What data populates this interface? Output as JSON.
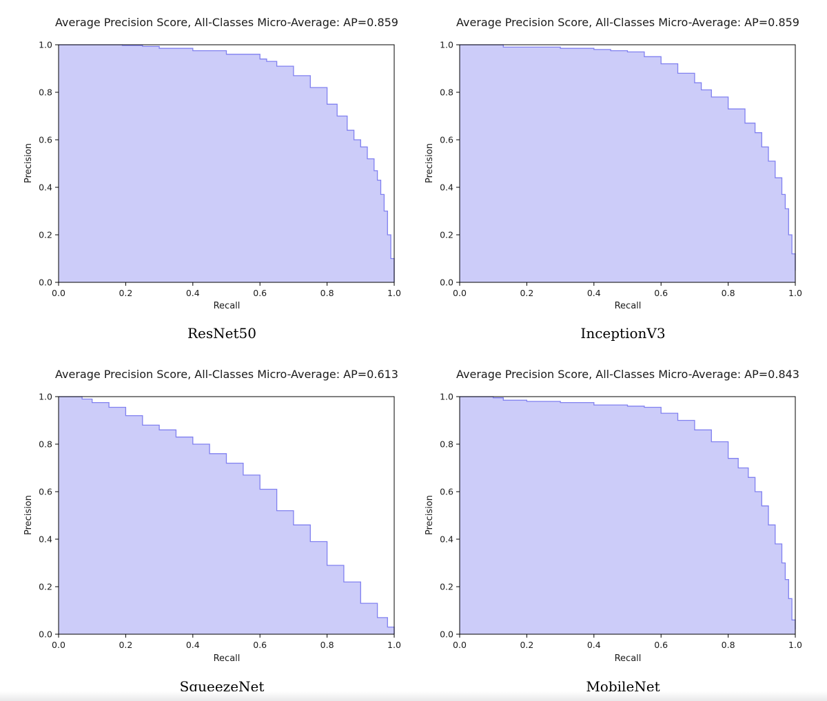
{
  "chart_data": [
    {
      "type": "area",
      "title": "Average Precision Score, All-Classes Micro-Average: AP=0.859",
      "caption": "ResNet50",
      "xlabel": "Recall",
      "ylabel": "Precision",
      "xlim": [
        0,
        1
      ],
      "ylim": [
        0,
        1
      ],
      "x_ticks": [
        "0.0",
        "0.2",
        "0.4",
        "0.6",
        "0.8",
        "1.0"
      ],
      "y_ticks": [
        "0.0",
        "0.2",
        "0.4",
        "0.6",
        "0.8",
        "1.0"
      ],
      "grid": false,
      "color": "#8080f0",
      "x": [
        0,
        0.19,
        0.25,
        0.3,
        0.4,
        0.5,
        0.6,
        0.62,
        0.65,
        0.7,
        0.75,
        0.8,
        0.83,
        0.86,
        0.88,
        0.9,
        0.92,
        0.94,
        0.95,
        0.96,
        0.97,
        0.98,
        0.99,
        1.0
      ],
      "y": [
        1.0,
        0.997,
        0.993,
        0.985,
        0.975,
        0.96,
        0.94,
        0.93,
        0.91,
        0.87,
        0.82,
        0.75,
        0.7,
        0.64,
        0.6,
        0.57,
        0.52,
        0.47,
        0.43,
        0.37,
        0.3,
        0.2,
        0.1,
        0.0
      ]
    },
    {
      "type": "area",
      "title": "Average Precision Score, All-Classes Micro-Average: AP=0.859",
      "caption": "InceptionV3",
      "xlabel": "Recall",
      "ylabel": "Precision",
      "xlim": [
        0,
        1
      ],
      "ylim": [
        0,
        1
      ],
      "x_ticks": [
        "0.0",
        "0.2",
        "0.4",
        "0.6",
        "0.8",
        "1.0"
      ],
      "y_ticks": [
        "0.0",
        "0.2",
        "0.4",
        "0.6",
        "0.8",
        "1.0"
      ],
      "grid": false,
      "color": "#8080f0",
      "x": [
        0,
        0.12,
        0.13,
        0.25,
        0.3,
        0.4,
        0.45,
        0.5,
        0.55,
        0.6,
        0.65,
        0.7,
        0.72,
        0.75,
        0.8,
        0.85,
        0.88,
        0.9,
        0.92,
        0.94,
        0.96,
        0.97,
        0.98,
        0.99,
        1.0
      ],
      "y": [
        1.0,
        1.0,
        0.99,
        0.99,
        0.985,
        0.98,
        0.975,
        0.97,
        0.95,
        0.92,
        0.88,
        0.84,
        0.81,
        0.78,
        0.73,
        0.67,
        0.63,
        0.57,
        0.51,
        0.44,
        0.37,
        0.31,
        0.2,
        0.12,
        0.05
      ]
    },
    {
      "type": "area",
      "title": "Average Precision Score, All-Classes Micro-Average: AP=0.613",
      "caption": "SqueezeNet",
      "xlabel": "Recall",
      "ylabel": "Precision",
      "xlim": [
        0,
        1
      ],
      "ylim": [
        0,
        1
      ],
      "x_ticks": [
        "0.0",
        "0.2",
        "0.4",
        "0.6",
        "0.8",
        "1.0"
      ],
      "y_ticks": [
        "0.0",
        "0.2",
        "0.4",
        "0.6",
        "0.8",
        "1.0"
      ],
      "grid": false,
      "color": "#8080f0",
      "x": [
        0,
        0.07,
        0.1,
        0.15,
        0.2,
        0.25,
        0.3,
        0.35,
        0.4,
        0.45,
        0.5,
        0.55,
        0.6,
        0.65,
        0.7,
        0.75,
        0.8,
        0.85,
        0.9,
        0.95,
        0.98,
        1.0
      ],
      "y": [
        1.0,
        0.99,
        0.975,
        0.955,
        0.92,
        0.88,
        0.86,
        0.83,
        0.8,
        0.76,
        0.72,
        0.67,
        0.61,
        0.52,
        0.46,
        0.39,
        0.29,
        0.22,
        0.13,
        0.07,
        0.03,
        0.0
      ]
    },
    {
      "type": "area",
      "title": "Average Precision Score, All-Classes Micro-Average: AP=0.843",
      "caption": "MobileNet",
      "xlabel": "Recall",
      "ylabel": "Precision",
      "xlim": [
        0,
        1
      ],
      "ylim": [
        0,
        1
      ],
      "x_ticks": [
        "0.0",
        "0.2",
        "0.4",
        "0.6",
        "0.8",
        "1.0"
      ],
      "y_ticks": [
        "0.0",
        "0.2",
        "0.4",
        "0.6",
        "0.8",
        "1.0"
      ],
      "grid": false,
      "color": "#8080f0",
      "x": [
        0,
        0.1,
        0.13,
        0.2,
        0.3,
        0.4,
        0.5,
        0.55,
        0.6,
        0.65,
        0.7,
        0.75,
        0.8,
        0.83,
        0.86,
        0.88,
        0.9,
        0.92,
        0.94,
        0.96,
        0.97,
        0.98,
        0.99,
        1.0
      ],
      "y": [
        1.0,
        0.995,
        0.985,
        0.98,
        0.975,
        0.965,
        0.96,
        0.955,
        0.93,
        0.9,
        0.86,
        0.81,
        0.74,
        0.7,
        0.66,
        0.6,
        0.54,
        0.46,
        0.38,
        0.3,
        0.23,
        0.15,
        0.06,
        0.02
      ]
    }
  ]
}
